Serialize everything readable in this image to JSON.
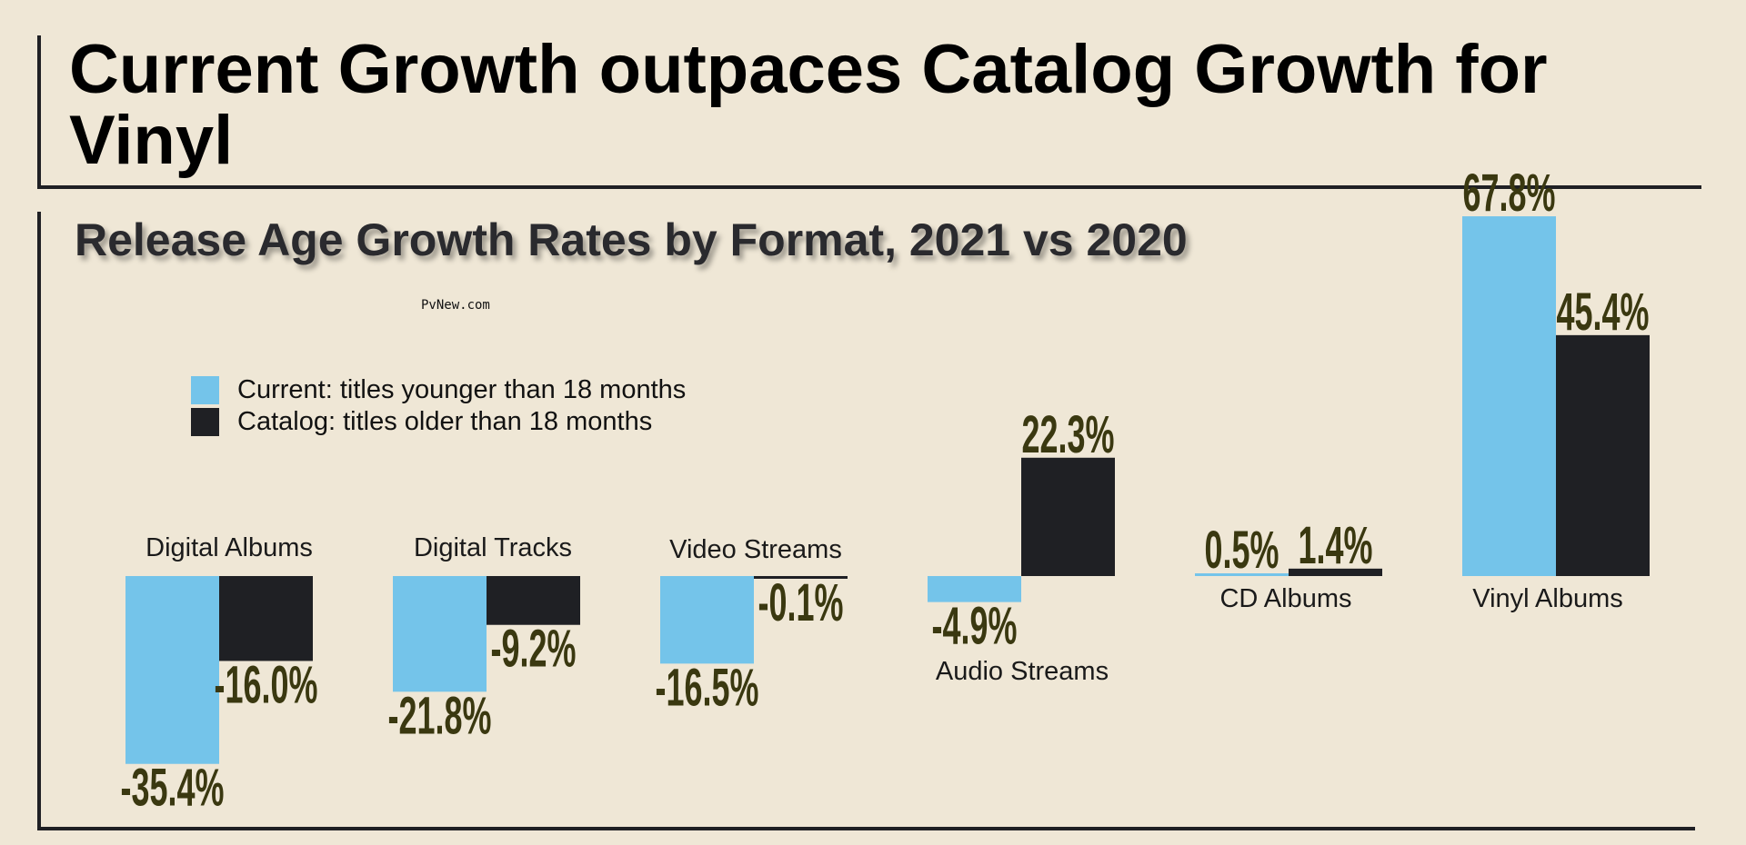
{
  "header": {
    "title": "Current Growth outpaces Catalog Growth for Vinyl"
  },
  "watermark": "PvNew.com",
  "chart_data": {
    "type": "bar",
    "title": "Release Age Growth Rates by Format, 2021 vs 2020",
    "categories": [
      "Digital Albums",
      "Digital Tracks",
      "Video Streams",
      "Audio Streams",
      "CD Albums",
      "Vinyl Albums"
    ],
    "series": [
      {
        "name": "Current: titles younger than 18 months",
        "color": "#74c4ea",
        "values": [
          -35.4,
          -21.8,
          -16.5,
          -4.9,
          0.5,
          67.8
        ]
      },
      {
        "name": "Catalog: titles older than 18 months",
        "color": "#1f2024",
        "values": [
          -16.0,
          -9.2,
          -0.1,
          22.3,
          1.4,
          45.4
        ]
      }
    ],
    "value_labels": [
      [
        "-35.4%",
        "-21.8%",
        "-16.5%",
        "-4.9%",
        "0.5%",
        "67.8%"
      ],
      [
        "-16.0%",
        "-9.2%",
        "-0.1%",
        "22.3%",
        "1.4%",
        "45.4%"
      ]
    ],
    "legend_position": "top-left",
    "grid": false,
    "label_color": "#3a3810"
  }
}
